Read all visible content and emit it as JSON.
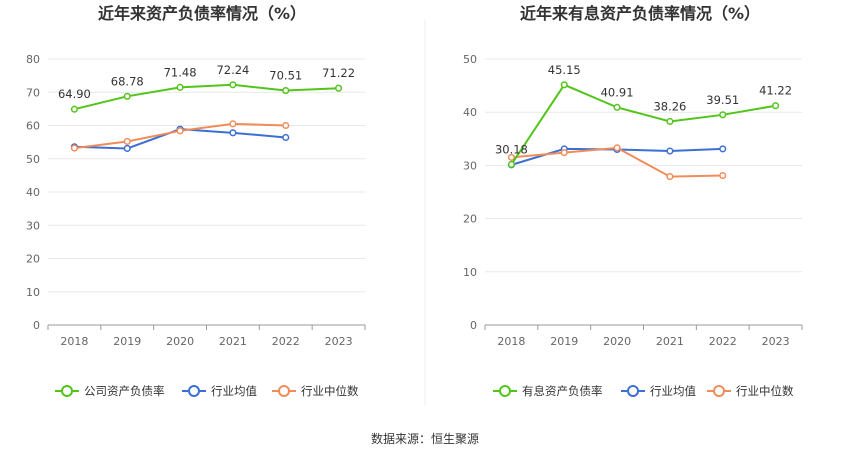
{
  "source": "数据来源：恒生聚源",
  "colors": {
    "company": "#52c41a",
    "industry_avg": "#3b6fd4",
    "industry_median": "#f08c5a",
    "grid": "#e8e8e8",
    "axis": "#999999"
  },
  "chart_data": [
    {
      "type": "line",
      "title": "近年来资产负债率情况（%）",
      "categories": [
        "2018",
        "2019",
        "2020",
        "2021",
        "2022",
        "2023"
      ],
      "ylim": [
        0,
        80
      ],
      "yticks": [
        0,
        10,
        20,
        30,
        40,
        50,
        60,
        70,
        80
      ],
      "grid": true,
      "legend_position": "bottom",
      "series": [
        {
          "name": "公司资产负债率",
          "color_key": "company",
          "values": [
            64.9,
            68.78,
            71.48,
            72.24,
            70.51,
            71.22
          ],
          "labels": [
            "64.90",
            "68.78",
            "71.48",
            "72.24",
            "70.51",
            "71.22"
          ]
        },
        {
          "name": "行业均值",
          "color_key": "industry_avg",
          "values": [
            53.6,
            53.1,
            58.9,
            57.8,
            56.4,
            null
          ]
        },
        {
          "name": "行业中位数",
          "color_key": "industry_median",
          "values": [
            53.2,
            55.2,
            58.4,
            60.5,
            60.0,
            null
          ]
        }
      ]
    },
    {
      "type": "line",
      "title": "近年来有息资产负债率情况（%）",
      "categories": [
        "2018",
        "2019",
        "2020",
        "2021",
        "2022",
        "2023"
      ],
      "ylim": [
        0,
        50
      ],
      "yticks": [
        0,
        10,
        20,
        30,
        40,
        50
      ],
      "grid": true,
      "legend_position": "bottom",
      "series": [
        {
          "name": "有息资产负债率",
          "color_key": "company",
          "values": [
            30.18,
            45.15,
            40.91,
            38.26,
            39.51,
            41.22
          ],
          "labels": [
            "30.18",
            "45.15",
            "40.91",
            "38.26",
            "39.51",
            "41.22"
          ]
        },
        {
          "name": "行业均值",
          "color_key": "industry_avg",
          "values": [
            30.1,
            33.1,
            33.0,
            32.7,
            33.1,
            null
          ]
        },
        {
          "name": "行业中位数",
          "color_key": "industry_median",
          "values": [
            31.5,
            32.4,
            33.3,
            27.9,
            28.1,
            null
          ]
        }
      ]
    }
  ]
}
